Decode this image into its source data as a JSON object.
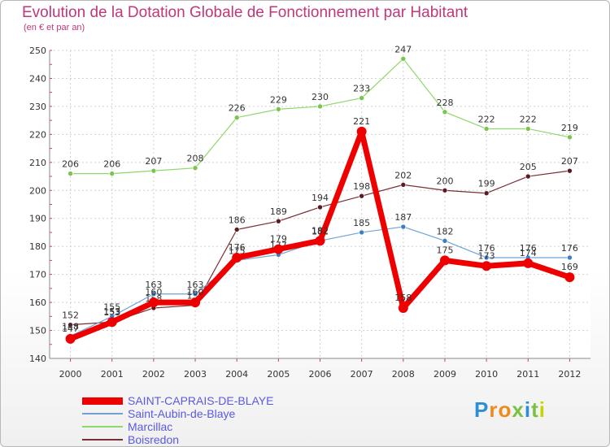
{
  "header": {
    "title": "Evolution de la Dotation Globale de Fonctionnement par Habitant",
    "subtitle": "(en € et par an)"
  },
  "logo": {
    "text": "Proxiti",
    "colors": [
      "#2a8fd4",
      "#f08a1c",
      "#f08a1c",
      "#7ac142",
      "#2a8fd4",
      "#7ac142",
      "#c8d400"
    ]
  },
  "chart_data": {
    "type": "line",
    "title": "Evolution de la Dotation Globale de Fonctionnement par Habitant",
    "subtitle": "(en € et par an)",
    "xlabel": "",
    "ylabel": "",
    "ylim": [
      140,
      250
    ],
    "yticks": [
      140,
      150,
      160,
      170,
      180,
      190,
      200,
      210,
      220,
      230,
      240,
      250
    ],
    "categories": [
      "2000",
      "2001",
      "2002",
      "2003",
      "2004",
      "2005",
      "2006",
      "2007",
      "2008",
      "2009",
      "2010",
      "2011",
      "2012"
    ],
    "grid": true,
    "legend_position": "bottom-left",
    "series": [
      {
        "name": "Marcillac",
        "color": "#8ed86a",
        "marker": "#7bc44f",
        "width": "thin",
        "values": [
          206,
          206,
          207,
          208,
          226,
          229,
          230,
          233,
          247,
          228,
          222,
          222,
          219
        ]
      },
      {
        "name": "Boisredon",
        "color": "#7a2e36",
        "marker": "#5a1a22",
        "width": "thin",
        "values": [
          152,
          153,
          158,
          159,
          186,
          189,
          194,
          198,
          202,
          200,
          199,
          205,
          207
        ]
      },
      {
        "name": "Saint-Aubin-de-Blaye",
        "color": "#6fa3d6",
        "marker": "#3d7fc4",
        "width": "thin",
        "values": [
          148,
          155,
          163,
          163,
          175,
          177,
          182,
          185,
          187,
          182,
          176,
          176,
          176
        ]
      },
      {
        "name": "SAINT-CAPRAIS-DE-BLAYE",
        "color": "#ee0000",
        "marker": "#ee0000",
        "width": "thick",
        "values": [
          147,
          153,
          160,
          160,
          176,
          179,
          182,
          221,
          158,
          175,
          173,
          174,
          169
        ]
      }
    ],
    "legend_order": [
      "SAINT-CAPRAIS-DE-BLAYE",
      "Saint-Aubin-de-Blaye",
      "Marcillac",
      "Boisredon"
    ]
  }
}
